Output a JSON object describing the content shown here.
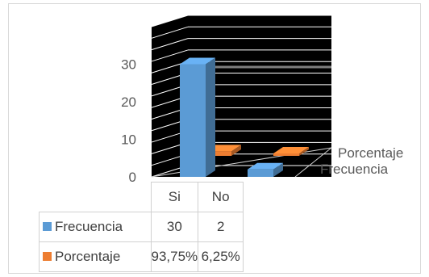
{
  "chart_data": {
    "type": "bar",
    "style": "3d-column-with-data-table",
    "categories": [
      "Si",
      "No"
    ],
    "series": [
      {
        "name": "Frecuencia",
        "values": [
          30,
          2
        ],
        "color": "#5b9bd5",
        "table_values": [
          "30",
          "2"
        ]
      },
      {
        "name": "Porcentaje",
        "values": [
          0.9375,
          0.0625
        ],
        "color": "#ed7d31",
        "table_values": [
          "93,75%",
          "6,25%"
        ]
      }
    ],
    "yticks": [
      "0",
      "10",
      "20",
      "30"
    ],
    "ylim": [
      0,
      40
    ],
    "title": "",
    "xlabel": "",
    "ylabel": "",
    "grid": true,
    "legend": "data-table"
  }
}
